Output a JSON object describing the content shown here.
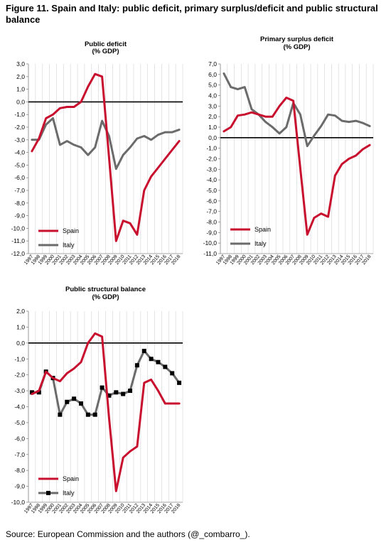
{
  "figure": {
    "title": "Figure 11. Spain and Italy: public deficit, primary surplus/deficit and public structural balance",
    "source": "Source: European Commission and the authors (@_combarro_)."
  },
  "colors": {
    "spain": "#c8102e",
    "italy": "#6b6b6b",
    "zero_line": "#000000",
    "grid": "#d9d9d9",
    "marker": "#000000"
  },
  "chart_data": [
    {
      "id": "deficit",
      "type": "line",
      "title_line1": "Public deficit",
      "title_line2": "(% GDP)",
      "x": [
        "1997",
        "1998",
        "1999",
        "2000",
        "2001",
        "2002",
        "2003",
        "2004",
        "2005",
        "2006",
        "2007",
        "2008",
        "2009",
        "2010",
        "2011",
        "2012",
        "2013",
        "2014",
        "2015",
        "2016",
        "2017",
        "2018"
      ],
      "ylim": [
        -12,
        3
      ],
      "ytick_step": 1,
      "ytick_labels": [
        "3,0",
        "2,0",
        "1,0",
        "0,0",
        "-1,0",
        "-2,0",
        "-3,0",
        "-4,0",
        "-5,0",
        "-6,0",
        "-7,0",
        "-8,0",
        "-9,0",
        "-10,0",
        "-11,0",
        "-12,0"
      ],
      "grid": "vertical",
      "legend_position": "bottom-left",
      "series": [
        {
          "name": "Spain",
          "color_key": "spain",
          "markers": false,
          "values": [
            -3.9,
            -2.9,
            -1.3,
            -1.0,
            -0.5,
            -0.4,
            -0.4,
            0.0,
            1.2,
            2.2,
            2.0,
            -4.4,
            -11.0,
            -9.4,
            -9.6,
            -10.5,
            -7.0,
            -5.9,
            -5.2,
            -4.5,
            -3.8,
            -3.1
          ]
        },
        {
          "name": "Italy",
          "color_key": "italy",
          "markers": false,
          "values": [
            -3.0,
            -3.0,
            -1.8,
            -1.3,
            -3.4,
            -3.1,
            -3.4,
            -3.6,
            -4.2,
            -3.6,
            -1.5,
            -2.7,
            -5.3,
            -4.2,
            -3.6,
            -2.9,
            -2.7,
            -3.0,
            -2.6,
            -2.4,
            -2.4,
            -2.2
          ]
        }
      ]
    },
    {
      "id": "primary",
      "type": "line",
      "title_line1": "Primary surplus deficit",
      "title_line2": "(% GDP)",
      "x": [
        "1997",
        "1998",
        "1999",
        "2000",
        "2001",
        "2002",
        "2003",
        "2004",
        "2005",
        "2006",
        "2007",
        "2008",
        "2009",
        "2010",
        "2011",
        "2012",
        "2013",
        "2014",
        "2015",
        "2016",
        "2017",
        "2018"
      ],
      "ylim": [
        -11,
        7
      ],
      "ytick_step": 1,
      "ytick_labels": [
        "7,0",
        "6,0",
        "5,0",
        "4,0",
        "3,0",
        "2,0",
        "1,0",
        "0,0",
        "-1,0",
        "-2,0",
        "-3,0",
        "-4,0",
        "-5,0",
        "-6,0",
        "-7,0",
        "-8,0",
        "-9,0",
        "-10,0",
        "-11,0"
      ],
      "grid": "vertical",
      "legend_position": "bottom-right",
      "series": [
        {
          "name": "Spain",
          "color_key": "spain",
          "markers": false,
          "values": [
            0.6,
            1.0,
            2.1,
            2.2,
            2.4,
            2.2,
            2.0,
            2.0,
            3.0,
            3.8,
            3.5,
            -2.9,
            -9.2,
            -7.6,
            -7.2,
            -7.5,
            -3.6,
            -2.5,
            -2.0,
            -1.7,
            -1.1,
            -0.7
          ]
        },
        {
          "name": "Italy",
          "color_key": "italy",
          "markers": false,
          "values": [
            6.1,
            4.8,
            4.6,
            4.8,
            2.7,
            2.2,
            1.5,
            1.0,
            0.4,
            1.0,
            3.3,
            2.2,
            -0.8,
            0.2,
            1.1,
            2.2,
            2.1,
            1.6,
            1.5,
            1.6,
            1.4,
            1.1
          ]
        }
      ]
    },
    {
      "id": "structural",
      "type": "line",
      "title_line1": "Public structural balance",
      "title_line2": "(% GDP)",
      "x": [
        "1997",
        "1998",
        "1999",
        "2000",
        "2001",
        "2002",
        "2003",
        "2004",
        "2005",
        "2006",
        "2007",
        "2008",
        "2009",
        "2010",
        "2011",
        "2012",
        "2013",
        "2014",
        "2015",
        "2016",
        "2017",
        "2018"
      ],
      "ylim": [
        -10,
        2
      ],
      "ytick_step": 1,
      "ytick_labels": [
        "2,0",
        "1,0",
        "0,0",
        "-1,0",
        "-2,0",
        "-3,0",
        "-4,0",
        "-5,0",
        "-6,0",
        "-7,0",
        "-8,0",
        "-9,0",
        "-10,0"
      ],
      "grid": "vertical",
      "legend_position": "bottom-left",
      "series": [
        {
          "name": "Spain",
          "color_key": "spain",
          "markers": false,
          "values": [
            -3.2,
            -3.0,
            -1.8,
            -2.2,
            -2.4,
            -1.9,
            -1.6,
            -1.2,
            0.0,
            0.6,
            0.4,
            -4.7,
            -9.3,
            -7.2,
            -6.8,
            -6.5,
            -2.5,
            -2.3,
            -3.0,
            -3.8,
            -3.8,
            -3.8
          ]
        },
        {
          "name": "Italy",
          "color_key": "italy",
          "markers": true,
          "values": [
            -3.1,
            -3.1,
            -1.8,
            -2.2,
            -4.5,
            -3.7,
            -3.5,
            -3.8,
            -4.5,
            -4.5,
            -2.8,
            -3.3,
            -3.1,
            -3.2,
            -3.0,
            -1.4,
            -0.5,
            -1.0,
            -1.2,
            -1.5,
            -1.9,
            -2.5
          ]
        }
      ]
    }
  ]
}
